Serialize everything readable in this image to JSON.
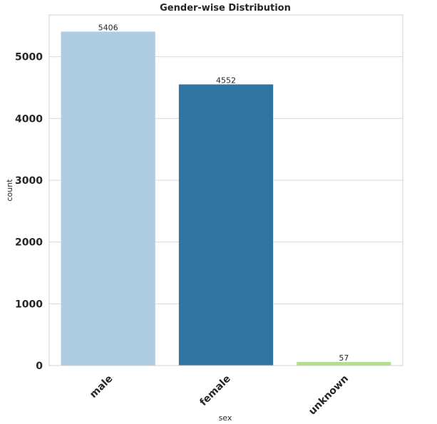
{
  "chart_data": {
    "type": "bar",
    "title": "Gender-wise Distribution",
    "xlabel": "sex",
    "ylabel": "count",
    "categories": [
      "male",
      "female",
      "unknown"
    ],
    "values": [
      5406,
      4552,
      57
    ],
    "data_labels": [
      "5406",
      "4552",
      "57"
    ],
    "yticks": [
      0,
      1000,
      2000,
      3000,
      4000,
      5000
    ],
    "ytick_labels": [
      "0",
      "1000",
      "2000",
      "3000",
      "4000",
      "5000"
    ],
    "ylim": [
      0,
      5676
    ],
    "grid": "horizontal",
    "colors": [
      "#aecde1",
      "#3274a1",
      "#b2df8a"
    ],
    "legend": "none"
  }
}
